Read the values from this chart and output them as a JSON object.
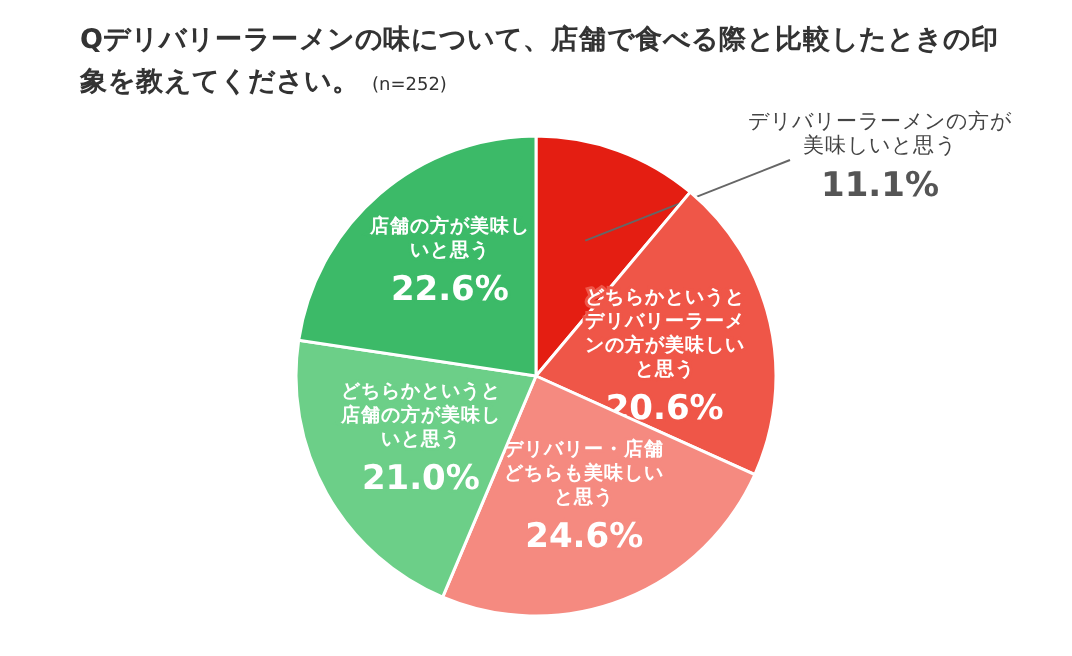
{
  "chart_data": {
    "type": "pie",
    "title": "Qデリバリーラーメンの味について、店舗で食べる際と比較したときの印象を教えてください。",
    "subtitle": "(n=252)",
    "categories": [
      "デリバリーラーメンの方が美味しいと思う",
      "どちらかというとデリバリーラーメンの方が美味しいと思う",
      "デリバリー・店舗どちらも美味しいと思う",
      "どちらかというと店舗の方が美味しいと思う",
      "店舗の方が美味しいと思う"
    ],
    "values": [
      11.1,
      20.6,
      24.6,
      21.0,
      22.6
    ],
    "value_labels": [
      "11.1%",
      "20.6%",
      "24.6%",
      "21.0%",
      "22.6%"
    ],
    "colors": [
      "#e41e12",
      "#ef5648",
      "#f58a80",
      "#6ccf88",
      "#3cba68"
    ],
    "legend": false
  }
}
